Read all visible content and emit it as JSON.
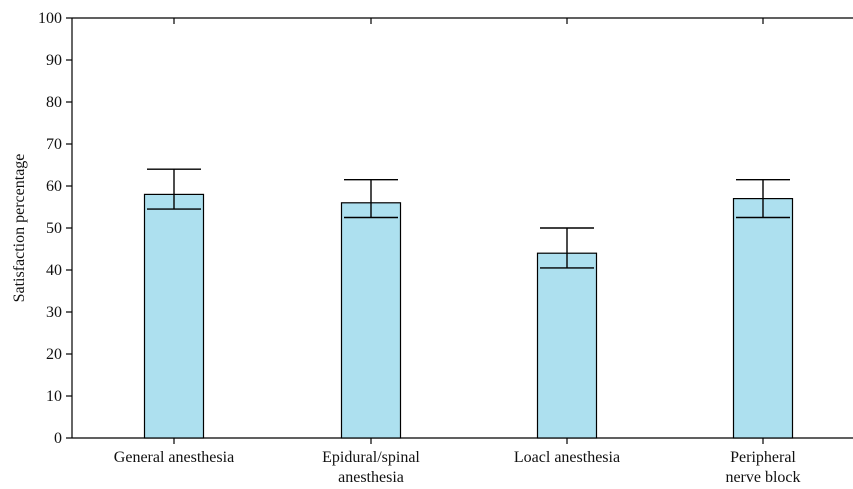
{
  "chart_data": {
    "type": "bar",
    "title": "",
    "xlabel": "",
    "ylabel": "Satisfaction percentage",
    "ylim": [
      0,
      100
    ],
    "yticks": [
      0,
      10,
      20,
      30,
      40,
      50,
      60,
      70,
      80,
      90,
      100
    ],
    "categories": [
      [
        "General anesthesia"
      ],
      [
        "Epidural/spinal",
        "anesthesia"
      ],
      [
        "Loacl anesthesia"
      ],
      [
        "Peripheral",
        "nerve block"
      ]
    ],
    "values": [
      58,
      56,
      44,
      57
    ],
    "error_upper": [
      64,
      61.5,
      50,
      61.5
    ],
    "error_lower": [
      54.5,
      52.5,
      40.5,
      52.5
    ],
    "grid": false,
    "colors": {
      "bar_fill": "#ade0ef",
      "bar_stroke": "#000000",
      "axis": "#000000"
    }
  }
}
